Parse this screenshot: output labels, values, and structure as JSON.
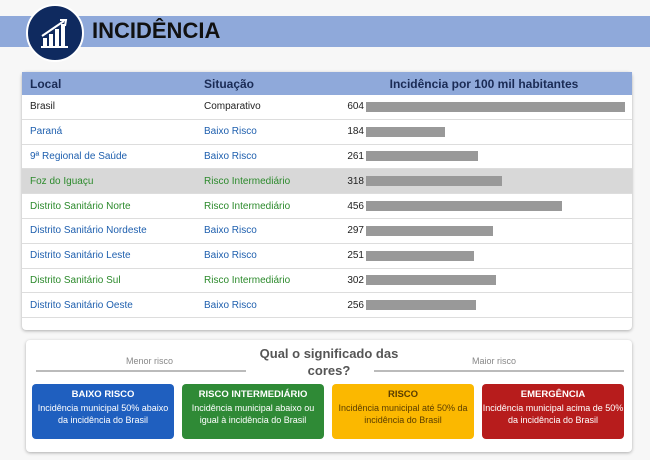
{
  "header": {
    "title": "INCIDÊNCIA",
    "icon": "growth-chart-icon"
  },
  "table": {
    "columns": [
      "Local",
      "Situação",
      "Incidência por 100 mil habitantes"
    ],
    "max": 604,
    "rows": [
      {
        "local": "Brasil",
        "situacao": "Comparativo",
        "valor": 604,
        "tone": "cmp"
      },
      {
        "local": "Paraná",
        "situacao": "Baixo Risco",
        "valor": 184,
        "tone": "low"
      },
      {
        "local": "9ª Regional de Saúde",
        "situacao": "Baixo Risco",
        "valor": 261,
        "tone": "low"
      },
      {
        "local": "Foz do Iguaçu",
        "situacao": "Risco Intermediário",
        "valor": 318,
        "tone": "mid",
        "highlight": true
      },
      {
        "local": "Distrito Sanitário Norte",
        "situacao": "Risco Intermediário",
        "valor": 456,
        "tone": "mid"
      },
      {
        "local": "Distrito Sanitário Nordeste",
        "situacao": "Baixo Risco",
        "valor": 297,
        "tone": "low"
      },
      {
        "local": "Distrito Sanitário Leste",
        "situacao": "Baixo Risco",
        "valor": 251,
        "tone": "low"
      },
      {
        "local": "Distrito Sanitário Sul",
        "situacao": "Risco Intermediário",
        "valor": 302,
        "tone": "mid"
      },
      {
        "local": "Distrito Sanitário Oeste",
        "situacao": "Baixo Risco",
        "valor": 256,
        "tone": "low"
      }
    ]
  },
  "legend": {
    "question": "Qual o significado das cores?",
    "less": "Menor risco",
    "more": "Maior risco",
    "cards": [
      {
        "title": "BAIXO RISCO",
        "text": "Incidência municipal 50% abaixo da incidência do Brasil",
        "color": "#1f5fbf"
      },
      {
        "title": "RISCO INTERMEDIÁRIO",
        "text": "Incidência municipal abaixo ou igual à incidência do Brasil",
        "color": "#2f8a36"
      },
      {
        "title": "RISCO",
        "text": "Incidência municipal até 50% da incidência do Brasil",
        "color": "#fbb800"
      },
      {
        "title": "EMERGÊNCIA",
        "text": "Incidência municipal acima de 50% da incidência do Brasil",
        "color": "#b71c1c"
      }
    ]
  }
}
